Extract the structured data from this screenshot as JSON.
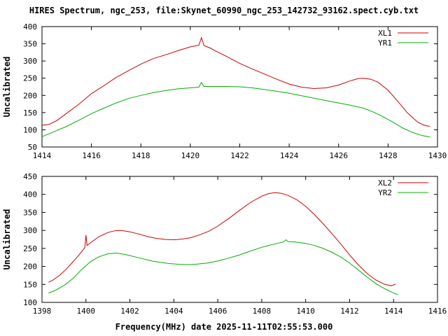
{
  "title": "HIRES Spectrum, ngc_253, file:Skynet_60990_ngc_253_142732_93162.spect.cyb.txt",
  "xlabel": "Frequency(MHz) date 2025-11-11T02:55:53.000",
  "chart_data": [
    {
      "type": "line",
      "ylabel": "Uncalibrated",
      "xlim": [
        1414,
        1430
      ],
      "ylim": [
        50,
        400
      ],
      "xticks": [
        1414,
        1416,
        1418,
        1420,
        1422,
        1424,
        1426,
        1428,
        1430
      ],
      "yticks": [
        50,
        100,
        150,
        200,
        250,
        300,
        350,
        400
      ],
      "grid": false,
      "legend_position": "top-right",
      "series": [
        {
          "name": "XL1",
          "color": "#cc0000",
          "points": [
            [
              1414.0,
              113
            ],
            [
              1414.3,
              116
            ],
            [
              1414.6,
              127
            ],
            [
              1415.0,
              148
            ],
            [
              1415.5,
              175
            ],
            [
              1416.0,
              205
            ],
            [
              1416.5,
              228
            ],
            [
              1417.0,
              252
            ],
            [
              1417.5,
              272
            ],
            [
              1418.0,
              291
            ],
            [
              1418.5,
              307
            ],
            [
              1419.0,
              318
            ],
            [
              1419.5,
              330
            ],
            [
              1420.0,
              341
            ],
            [
              1420.2,
              344
            ],
            [
              1420.35,
              346
            ],
            [
              1420.45,
              368
            ],
            [
              1420.55,
              345
            ],
            [
              1420.8,
              338
            ],
            [
              1421.0,
              330
            ],
            [
              1421.5,
              312
            ],
            [
              1422.0,
              293
            ],
            [
              1422.5,
              277
            ],
            [
              1423.0,
              262
            ],
            [
              1423.5,
              247
            ],
            [
              1424.0,
              233
            ],
            [
              1424.5,
              224
            ],
            [
              1425.0,
              220
            ],
            [
              1425.5,
              222
            ],
            [
              1426.0,
              230
            ],
            [
              1426.5,
              243
            ],
            [
              1426.8,
              249
            ],
            [
              1427.0,
              250
            ],
            [
              1427.3,
              247
            ],
            [
              1427.6,
              238
            ],
            [
              1428.0,
              215
            ],
            [
              1428.4,
              182
            ],
            [
              1428.8,
              148
            ],
            [
              1429.2,
              122
            ],
            [
              1429.5,
              112
            ],
            [
              1429.7,
              110
            ]
          ]
        },
        {
          "name": "YR1",
          "color": "#00b000",
          "points": [
            [
              1414.0,
              80
            ],
            [
              1414.5,
              95
            ],
            [
              1415.0,
              110
            ],
            [
              1415.5,
              128
            ],
            [
              1416.0,
              147
            ],
            [
              1416.5,
              163
            ],
            [
              1417.0,
              178
            ],
            [
              1417.5,
              191
            ],
            [
              1418.0,
              200
            ],
            [
              1418.5,
              208
            ],
            [
              1419.0,
              214
            ],
            [
              1419.5,
              219
            ],
            [
              1420.0,
              222
            ],
            [
              1420.35,
              224
            ],
            [
              1420.45,
              238
            ],
            [
              1420.55,
              226
            ],
            [
              1421.0,
              226
            ],
            [
              1421.5,
              226
            ],
            [
              1422.0,
              225
            ],
            [
              1422.5,
              222
            ],
            [
              1423.0,
              217
            ],
            [
              1423.5,
              212
            ],
            [
              1424.0,
              206
            ],
            [
              1424.5,
              199
            ],
            [
              1425.0,
              192
            ],
            [
              1425.5,
              185
            ],
            [
              1426.0,
              178
            ],
            [
              1426.5,
              171
            ],
            [
              1427.0,
              163
            ],
            [
              1427.4,
              152
            ],
            [
              1427.8,
              138
            ],
            [
              1428.2,
              122
            ],
            [
              1428.6,
              105
            ],
            [
              1429.0,
              92
            ],
            [
              1429.4,
              83
            ],
            [
              1429.7,
              79
            ]
          ]
        }
      ]
    },
    {
      "type": "line",
      "ylabel": "Uncalibrated",
      "xlim": [
        1398,
        1416
      ],
      "ylim": [
        100,
        450
      ],
      "xticks": [
        1398,
        1400,
        1402,
        1404,
        1406,
        1408,
        1410,
        1412,
        1414,
        1416
      ],
      "yticks": [
        100,
        150,
        200,
        250,
        300,
        350,
        400,
        450
      ],
      "grid": false,
      "legend_position": "top-right",
      "series": [
        {
          "name": "XL2",
          "color": "#cc0000",
          "points": [
            [
              1398.3,
              156
            ],
            [
              1398.5,
              162
            ],
            [
              1398.8,
              175
            ],
            [
              1399.1,
              192
            ],
            [
              1399.4,
              212
            ],
            [
              1399.7,
              233
            ],
            [
              1399.95,
              252
            ],
            [
              1400.0,
              287
            ],
            [
              1400.05,
              258
            ],
            [
              1400.3,
              270
            ],
            [
              1400.6,
              283
            ],
            [
              1401.0,
              294
            ],
            [
              1401.3,
              299
            ],
            [
              1401.6,
              300
            ],
            [
              1402.0,
              296
            ],
            [
              1402.4,
              290
            ],
            [
              1402.8,
              283
            ],
            [
              1403.2,
              278
            ],
            [
              1403.6,
              275
            ],
            [
              1404.0,
              274
            ],
            [
              1404.4,
              276
            ],
            [
              1404.8,
              280
            ],
            [
              1405.2,
              288
            ],
            [
              1405.6,
              298
            ],
            [
              1406.0,
              312
            ],
            [
              1406.5,
              333
            ],
            [
              1407.0,
              356
            ],
            [
              1407.5,
              378
            ],
            [
              1408.0,
              395
            ],
            [
              1408.3,
              402
            ],
            [
              1408.6,
              405
            ],
            [
              1408.9,
              403
            ],
            [
              1409.2,
              397
            ],
            [
              1409.6,
              385
            ],
            [
              1410.0,
              367
            ],
            [
              1410.4,
              344
            ],
            [
              1410.8,
              318
            ],
            [
              1411.2,
              291
            ],
            [
              1411.6,
              262
            ],
            [
              1412.0,
              232
            ],
            [
              1412.4,
              204
            ],
            [
              1412.8,
              180
            ],
            [
              1413.2,
              162
            ],
            [
              1413.6,
              150
            ],
            [
              1413.9,
              146
            ],
            [
              1414.1,
              151
            ]
          ]
        },
        {
          "name": "YR2",
          "color": "#00b000",
          "points": [
            [
              1398.3,
              126
            ],
            [
              1398.6,
              133
            ],
            [
              1399.0,
              147
            ],
            [
              1399.4,
              166
            ],
            [
              1399.8,
              191
            ],
            [
              1400.2,
              213
            ],
            [
              1400.6,
              227
            ],
            [
              1401.0,
              235
            ],
            [
              1401.4,
              237
            ],
            [
              1401.8,
              233
            ],
            [
              1402.2,
              227
            ],
            [
              1402.6,
              221
            ],
            [
              1403.0,
              215
            ],
            [
              1403.4,
              211
            ],
            [
              1403.8,
              208
            ],
            [
              1404.2,
              206
            ],
            [
              1404.6,
              205
            ],
            [
              1405.0,
              206
            ],
            [
              1405.5,
              209
            ],
            [
              1406.0,
              215
            ],
            [
              1406.5,
              223
            ],
            [
              1407.0,
              232
            ],
            [
              1407.5,
              243
            ],
            [
              1408.0,
              253
            ],
            [
              1408.5,
              261
            ],
            [
              1409.0,
              268
            ],
            [
              1409.1,
              274
            ],
            [
              1409.2,
              269
            ],
            [
              1409.5,
              268
            ],
            [
              1410.0,
              264
            ],
            [
              1410.4,
              258
            ],
            [
              1410.8,
              250
            ],
            [
              1411.2,
              239
            ],
            [
              1411.6,
              226
            ],
            [
              1412.0,
              209
            ],
            [
              1412.4,
              190
            ],
            [
              1412.8,
              170
            ],
            [
              1413.2,
              152
            ],
            [
              1413.6,
              138
            ],
            [
              1414.0,
              126
            ],
            [
              1414.2,
              121
            ]
          ]
        }
      ]
    }
  ]
}
